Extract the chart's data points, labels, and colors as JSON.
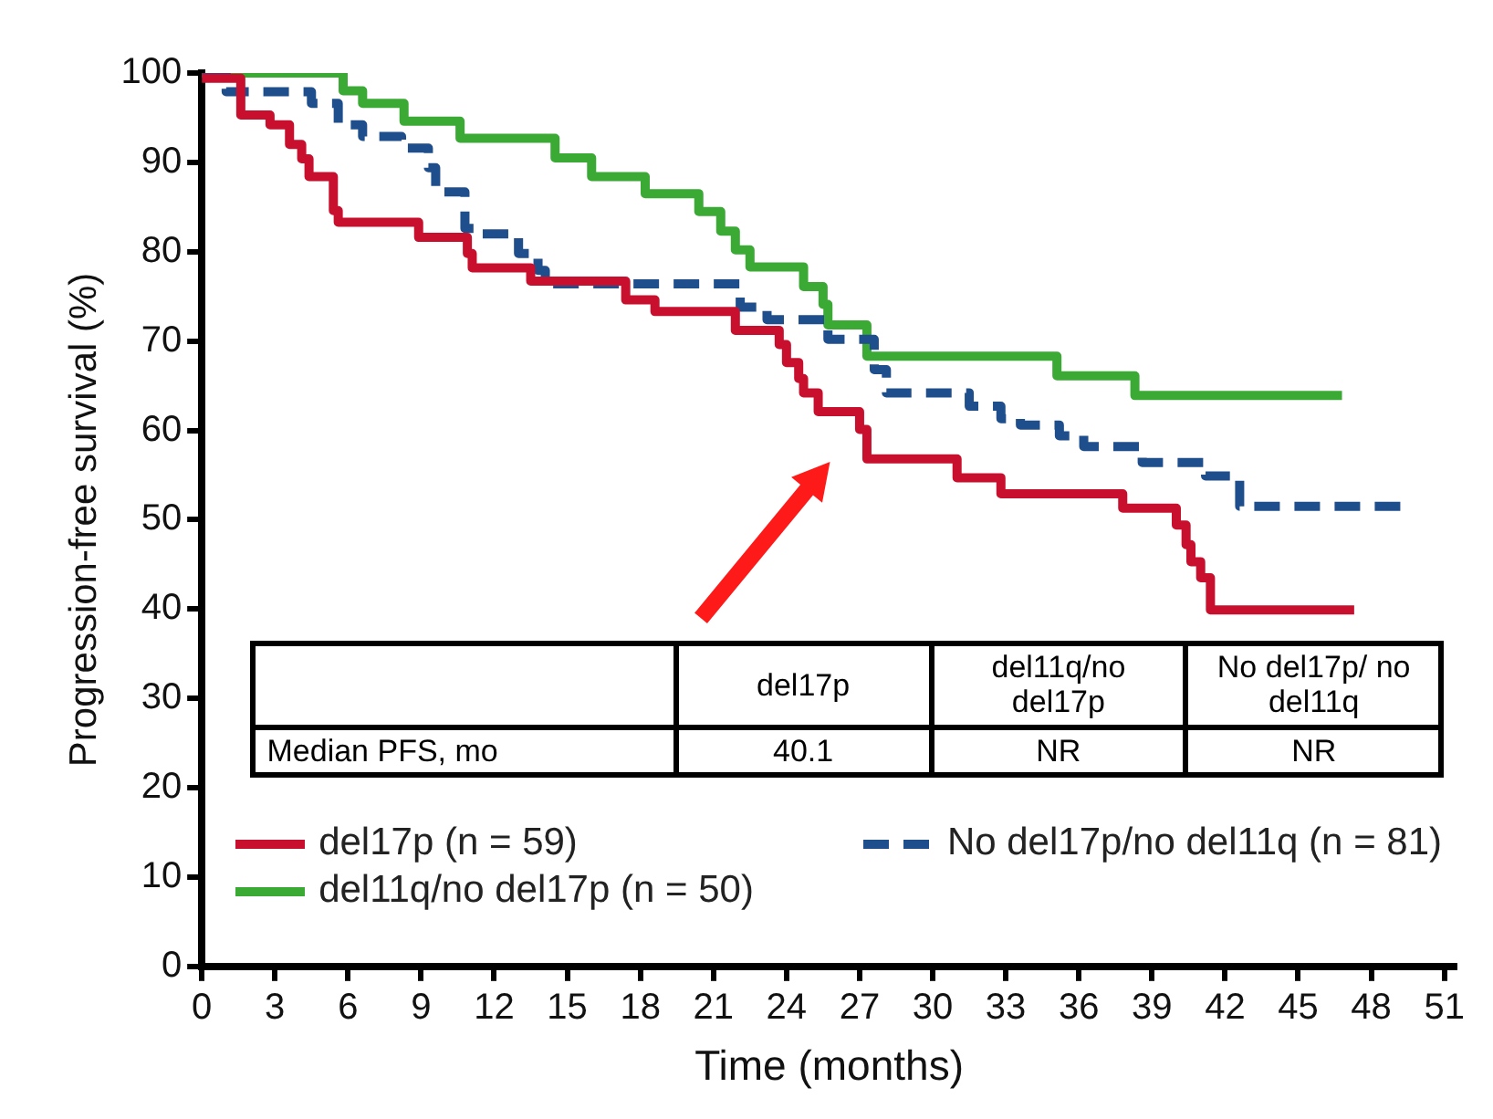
{
  "chart_data": {
    "type": "step",
    "xlabel": "Time (months)",
    "ylabel": "Progression-free survival (%)",
    "xlim": [
      0,
      51.5
    ],
    "xticks": [
      0,
      3,
      6,
      9,
      12,
      15,
      18,
      21,
      24,
      27,
      30,
      33,
      36,
      39,
      42,
      45,
      48,
      51
    ],
    "ylim": [
      0,
      100
    ],
    "yticks": [
      0,
      10,
      20,
      30,
      40,
      50,
      60,
      70,
      80,
      90,
      100
    ],
    "grid": false,
    "legend": "bottom left",
    "marker": "none",
    "annotations": [
      "del17p",
      "del11q/no del17p",
      "No del17p/ no del11q",
      "Median PFS, mo",
      "40.1",
      "NR",
      "NR"
    ],
    "series": [
      {
        "name": "del17p (n = 59)",
        "color": "#c8102e",
        "line_style": "solid",
        "x": [
          0,
          1.6,
          2.8,
          3.6,
          4.1,
          4.4,
          5.4,
          5.6,
          8.9,
          10.9,
          11.1,
          13.5,
          17.4,
          18.6,
          21.9,
          23.7,
          24,
          24.5,
          24.7,
          25.3,
          27,
          27.3,
          31,
          32.8,
          37.8,
          40,
          40.4,
          40.6,
          41,
          41.4,
          47.3
        ],
        "values": [
          99.4,
          95.3,
          94.2,
          92,
          90.4,
          88.4,
          84.6,
          83.3,
          81.6,
          79.8,
          78.2,
          76.7,
          74.6,
          73.3,
          71.2,
          69.6,
          67.6,
          65.8,
          64.2,
          62.1,
          60.1,
          56.8,
          54.7,
          52.9,
          51.3,
          49.4,
          47.2,
          45.3,
          43.5,
          39.9,
          39.9
        ]
      },
      {
        "name": "No del17p/no del11q (n = 81)",
        "color": "#1f4e8c",
        "line_style": "dashed",
        "x": [
          0,
          1,
          4.5,
          5.6,
          6.6,
          8.2,
          9.3,
          9.6,
          10.8,
          11.2,
          13,
          13.8,
          14.1,
          22.1,
          23.2,
          25.7,
          27.6,
          28.1,
          31.5,
          32.8,
          33.6,
          35.2,
          36.2,
          38.6,
          41.2,
          42.6,
          49.4
        ],
        "values": [
          100,
          97.9,
          96.6,
          94.2,
          92.9,
          91.6,
          89.4,
          86.7,
          82.6,
          82,
          79.8,
          77.9,
          76.4,
          73.8,
          72.4,
          70.2,
          66.8,
          64.2,
          62.7,
          61.3,
          60.6,
          59.4,
          58.2,
          56.4,
          54.9,
          51.5,
          51.5
        ]
      },
      {
        "name": "del11q/no del17p (n = 50)",
        "color": "#3aaa35",
        "line_style": "solid",
        "x": [
          0,
          5.8,
          6.6,
          8.3,
          10.6,
          14.5,
          16,
          18.2,
          20.4,
          21.3,
          21.9,
          22.5,
          24.7,
          25.5,
          25.7,
          27.3,
          35.1,
          38.3,
          46.8
        ],
        "values": [
          100,
          98,
          96.6,
          94.6,
          92.7,
          90.5,
          88.4,
          86.5,
          84.5,
          82.3,
          80.2,
          78.3,
          76.1,
          74.1,
          71.8,
          68.3,
          66.1,
          63.9,
          63.9
        ]
      }
    ]
  }
}
